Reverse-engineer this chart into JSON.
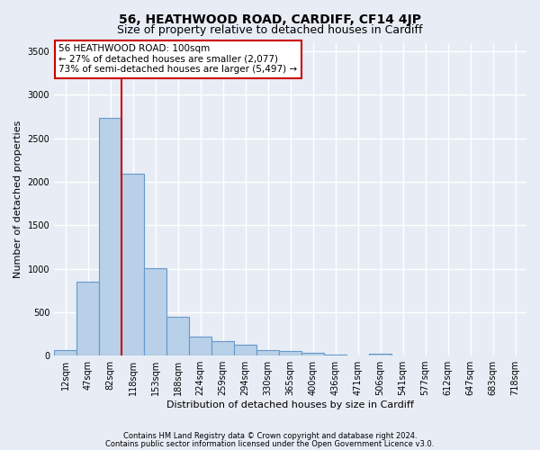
{
  "title": "56, HEATHWOOD ROAD, CARDIFF, CF14 4JP",
  "subtitle": "Size of property relative to detached houses in Cardiff",
  "xlabel": "Distribution of detached houses by size in Cardiff",
  "ylabel": "Number of detached properties",
  "categories": [
    "12sqm",
    "47sqm",
    "82sqm",
    "118sqm",
    "153sqm",
    "188sqm",
    "224sqm",
    "259sqm",
    "294sqm",
    "330sqm",
    "365sqm",
    "400sqm",
    "436sqm",
    "471sqm",
    "506sqm",
    "541sqm",
    "577sqm",
    "612sqm",
    "647sqm",
    "683sqm",
    "718sqm"
  ],
  "values": [
    65,
    850,
    2730,
    2090,
    1010,
    450,
    220,
    165,
    125,
    65,
    55,
    35,
    15,
    0,
    20,
    0,
    0,
    0,
    0,
    0,
    0
  ],
  "bar_color": "#b8d0e8",
  "bar_edgecolor": "#6699cc",
  "vline_x_pos": 2.5,
  "vline_color": "#cc0000",
  "annotation_text": "56 HEATHWOOD ROAD: 100sqm\n← 27% of detached houses are smaller (2,077)\n73% of semi-detached houses are larger (5,497) →",
  "annotation_box_facecolor": "white",
  "annotation_box_edgecolor": "#cc0000",
  "ylim": [
    0,
    3600
  ],
  "yticks": [
    0,
    500,
    1000,
    1500,
    2000,
    2500,
    3000,
    3500
  ],
  "background_color": "#e8edf5",
  "plot_bg_color": "#e8edf5",
  "grid_color": "white",
  "title_fontsize": 10,
  "subtitle_fontsize": 9,
  "axis_label_fontsize": 8,
  "tick_fontsize": 7,
  "footer_line1": "Contains HM Land Registry data © Crown copyright and database right 2024.",
  "footer_line2": "Contains public sector information licensed under the Open Government Licence v3.0."
}
